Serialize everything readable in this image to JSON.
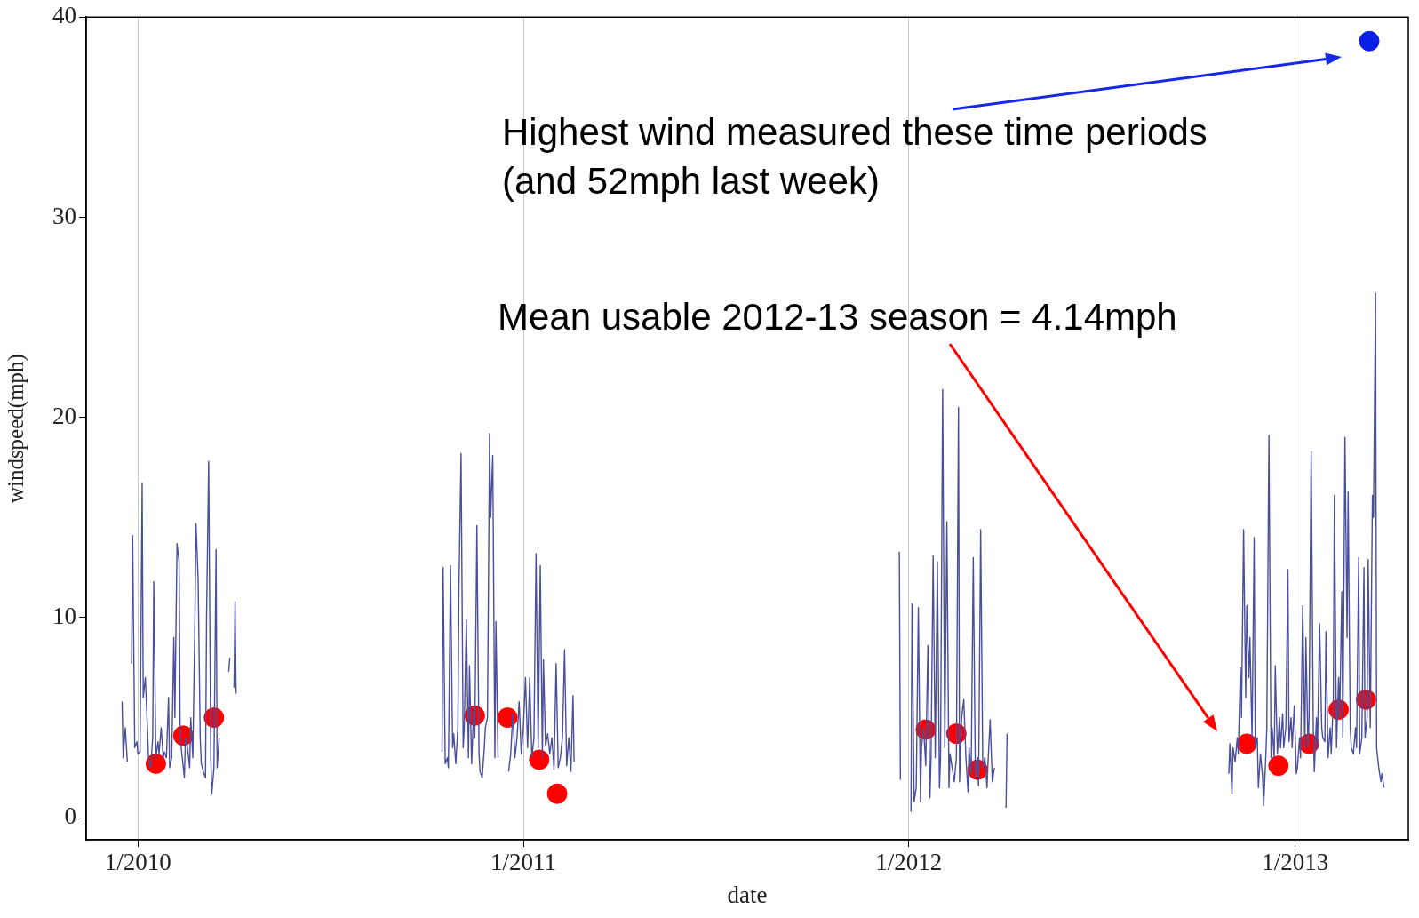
{
  "chart_data": {
    "type": "line",
    "xlabel": "date",
    "ylabel": "windspeed(mph)",
    "xlim": [
      "2009-11-13",
      "2013-04-18"
    ],
    "ylim": [
      -1.1,
      40
    ],
    "xticks": [
      {
        "value": "2010-01-01",
        "label": "1/2010"
      },
      {
        "value": "2011-01-01",
        "label": "1/2011"
      },
      {
        "value": "2012-01-01",
        "label": "1/2012"
      },
      {
        "value": "2013-01-01",
        "label": "1/2013"
      }
    ],
    "yticks": [
      0,
      10,
      20,
      30,
      40
    ],
    "grid": "x",
    "legend": false,
    "annotations": [
      "Highest wind measured these time periods\n(and 52mph last week)",
      "Mean usable 2012-13 season = 4.14mph"
    ],
    "series": [
      {
        "type": "line",
        "color": "#4a4f9c",
        "line_style": "solid",
        "marker": "none",
        "x": [
          "2009-12-17",
          "2009-12-18",
          "2009-12-20",
          "2009-12-22",
          "2009-12-24",
          "2009-12-26",
          "2009-12-27",
          "2009-12-29",
          "2009-12-31",
          "2010-01-01",
          "2010-01-03",
          "2010-01-05",
          "2010-01-06",
          "2010-01-08",
          "2010-01-10",
          "2010-01-11",
          "2010-01-13",
          "2010-01-15",
          "2010-01-16",
          "2010-01-18",
          "2010-01-20",
          "2010-01-21",
          "2010-01-23",
          "2010-01-25",
          "2010-01-26",
          "2010-01-28",
          "2010-01-30",
          "2010-01-31",
          "2010-02-02",
          "2010-02-04",
          "2010-02-05",
          "2010-02-07",
          "2010-02-09",
          "2010-02-10",
          "2010-02-12",
          "2010-02-14",
          "2010-02-15",
          "2010-02-17",
          "2010-02-19",
          "2010-02-20",
          "2010-02-22",
          "2010-02-24",
          "2010-02-25",
          "2010-02-27",
          "2010-03-01",
          "2010-03-02",
          "2010-03-04",
          "2010-03-06",
          "2010-03-07",
          "2010-03-09",
          "2010-03-11",
          "2010-03-12",
          "2010-03-14",
          "2010-03-16",
          "2010-03-17",
          "2010-03-19",
          "2010-03-24",
          "2010-03-28",
          "2010-03-29",
          "2010-03-31",
          "2010-04-02",
          "2010-04-03",
          "2010-04-04",
          "2010-07-01",
          "2010-10-16",
          "2010-10-17",
          "2010-10-19",
          "2010-10-21",
          "2010-10-22",
          "2010-10-24",
          "2010-10-26",
          "2010-10-27",
          "2010-10-29",
          "2010-10-31",
          "2010-11-01",
          "2010-11-03",
          "2010-11-05",
          "2010-11-06",
          "2010-11-08",
          "2010-11-10",
          "2010-11-11",
          "2010-11-13",
          "2010-11-15",
          "2010-11-16",
          "2010-11-18",
          "2010-11-20",
          "2010-11-21",
          "2010-11-23",
          "2010-11-25",
          "2010-11-26",
          "2010-11-28",
          "2010-11-30",
          "2010-12-01",
          "2010-12-03",
          "2010-12-05",
          "2010-12-06",
          "2010-12-08",
          "2010-12-13",
          "2010-12-18",
          "2010-12-20",
          "2010-12-22",
          "2010-12-24",
          "2010-12-26",
          "2010-12-28",
          "2010-12-30",
          "2011-01-01",
          "2011-01-03",
          "2011-01-05",
          "2011-01-07",
          "2011-01-09",
          "2011-01-11",
          "2011-01-13",
          "2011-01-15",
          "2011-01-17",
          "2011-01-19",
          "2011-01-20",
          "2011-01-22",
          "2011-01-24",
          "2011-01-26",
          "2011-01-28",
          "2011-01-30",
          "2011-02-01",
          "2011-02-03",
          "2011-02-05",
          "2011-02-07",
          "2011-02-09",
          "2011-02-11",
          "2011-02-13",
          "2011-02-15",
          "2011-02-17",
          "2011-02-18",
          "2011-07-01",
          "2011-12-23",
          "2011-12-24",
          "2011-12-29",
          "2012-01-03",
          "2012-01-04",
          "2012-01-06",
          "2012-01-08",
          "2012-01-10",
          "2012-01-12",
          "2012-01-13",
          "2012-01-15",
          "2012-01-17",
          "2012-01-19",
          "2012-01-21",
          "2012-01-22",
          "2012-01-24",
          "2012-01-26",
          "2012-01-28",
          "2012-01-30",
          "2012-01-31",
          "2012-02-02",
          "2012-02-04",
          "2012-02-06",
          "2012-02-08",
          "2012-02-09",
          "2012-02-11",
          "2012-02-13",
          "2012-02-15",
          "2012-02-17",
          "2012-02-18",
          "2012-02-20",
          "2012-02-22",
          "2012-02-24",
          "2012-02-26",
          "2012-02-27",
          "2012-02-29",
          "2012-03-02",
          "2012-03-04",
          "2012-03-06",
          "2012-03-07",
          "2012-03-09",
          "2012-03-11",
          "2012-03-13",
          "2012-03-15",
          "2012-03-16",
          "2012-03-18",
          "2012-03-20",
          "2012-03-22",
          "2012-03-27",
          "2012-04-02",
          "2012-04-03",
          "2012-07-01",
          "2012-10-30",
          "2012-10-31",
          "2012-11-02",
          "2012-11-03",
          "2012-11-05",
          "2012-11-07",
          "2012-11-08",
          "2012-11-10",
          "2012-11-11",
          "2012-11-13",
          "2012-11-15",
          "2012-11-16",
          "2012-11-18",
          "2012-11-19",
          "2012-11-21",
          "2012-11-23",
          "2012-11-24",
          "2012-11-26",
          "2012-11-27",
          "2012-11-29",
          "2012-12-01",
          "2012-12-02",
          "2012-12-04",
          "2012-12-05",
          "2012-12-07",
          "2012-12-09",
          "2012-12-10",
          "2012-12-12",
          "2012-12-13",
          "2012-12-15",
          "2012-12-17",
          "2012-12-18",
          "2012-12-20",
          "2012-12-21",
          "2012-12-23",
          "2012-12-25",
          "2012-12-26",
          "2012-12-28",
          "2012-12-29",
          "2012-12-31",
          "2013-01-02",
          "2013-01-03",
          "2013-01-05",
          "2013-01-06",
          "2013-01-08",
          "2013-01-10",
          "2013-01-11",
          "2013-01-13",
          "2013-01-14",
          "2013-01-16",
          "2013-01-18",
          "2013-01-19",
          "2013-01-21",
          "2013-01-22",
          "2013-01-24",
          "2013-01-26",
          "2013-01-27",
          "2013-01-29",
          "2013-01-30",
          "2013-02-01",
          "2013-02-03",
          "2013-02-04",
          "2013-02-06",
          "2013-02-07",
          "2013-02-09",
          "2013-02-11",
          "2013-02-12",
          "2013-02-14",
          "2013-02-15",
          "2013-02-17",
          "2013-02-19",
          "2013-02-20",
          "2013-02-22",
          "2013-02-23",
          "2013-02-25",
          "2013-02-27",
          "2013-02-28",
          "2013-03-02",
          "2013-03-03",
          "2013-03-05",
          "2013-03-07",
          "2013-03-08",
          "2013-03-10",
          "2013-03-11",
          "2013-03-13",
          "2013-03-15",
          "2013-03-16",
          "2013-03-18",
          "2013-03-19",
          "2013-03-21",
          "2013-03-23",
          "2013-03-24",
          "2013-03-26"
        ],
        "values": [
          5.8,
          3.0,
          4.5,
          2.8,
          null,
          7.7,
          14.1,
          3.5,
          3.8,
          3.2,
          3.3,
          16.7,
          6,
          7,
          4.5,
          3,
          2.5,
          4,
          11.8,
          3,
          3.8,
          3.2,
          4.5,
          3,
          3.3,
          3,
          6,
          2.5,
          3,
          9,
          5,
          13.7,
          12.8,
          4,
          3,
          2,
          4,
          3.5,
          2.5,
          5,
          3,
          10,
          14.7,
          12,
          4,
          2.7,
          2.3,
          2,
          10,
          17.8,
          3,
          1.2,
          2.5,
          13.4,
          2.5,
          4,
          null,
          7.3,
          8,
          null,
          6.5,
          10.8,
          6.2,
          null,
          3.3,
          12.5,
          2.7,
          3.0,
          2.5,
          12.6,
          3.5,
          4.2,
          2.7,
          4.5,
          11.5,
          18.2,
          3.5,
          4.5,
          9.9,
          3,
          7.6,
          2.7,
          5.5,
          4,
          14.6,
          3.2,
          2.3,
          2,
          3.5,
          4.5,
          5,
          19.2,
          15,
          18.1,
          3,
          9.8,
          3,
          null,
          2.3,
          3.2,
          5.2,
          3,
          4,
          5.8,
          3.2,
          4.5,
          7,
          3.5,
          7,
          3,
          4,
          13.2,
          3.5,
          12.6,
          3,
          7.9,
          3.6,
          4.2,
          3.2,
          4,
          2.4,
          7.7,
          2.5,
          3,
          4,
          8.4,
          2.6,
          4,
          2.3,
          6.1,
          2.8,
          null,
          13.3,
          1.9,
          null,
          0.3,
          10.7,
          0.8,
          1.5,
          10.5,
          0.8,
          3.5,
          4.5,
          2.6,
          8.6,
          1.0,
          3.0,
          13.1,
          3,
          12.8,
          1.5,
          3,
          21.4,
          3.5,
          14.8,
          1.5,
          3.2,
          2.5,
          1.8,
          3,
          20.5,
          1.8,
          5,
          5.9,
          3,
          1.3,
          3.5,
          2.2,
          13.0,
          2.0,
          3,
          1.6,
          14.4,
          2.5,
          3,
          1.5,
          2.8,
          4.9,
          1.8,
          2.5,
          null,
          0.5,
          4.2,
          null,
          2.2,
          3.7,
          1.2,
          3.5,
          2.8,
          4.0,
          3.2,
          7.5,
          5,
          14.4,
          6,
          10.6,
          7,
          9,
          4,
          14.0,
          3.5,
          4,
          1.5,
          3.2,
          2.0,
          0.6,
          3,
          4.5,
          19.1,
          3,
          4.5,
          3,
          7.6,
          3.2,
          5,
          3.5,
          5.2,
          3.5,
          4.5,
          12.4,
          3.8,
          5,
          3.5,
          5.6,
          2.2,
          2.5,
          4,
          3,
          10.6,
          3.5,
          9,
          3.5,
          5,
          18.3,
          4.5,
          2.3,
          5,
          3.5,
          9.7,
          4.5,
          4,
          3.8,
          9.3,
          3,
          4.5,
          3.2,
          6,
          16.1,
          3.5,
          7,
          5,
          11.3,
          4,
          19.0,
          9,
          16.3,
          4.5,
          3.5,
          3.2,
          4.5,
          3.5,
          13.0,
          3.2,
          4,
          12.5,
          4,
          5,
          12.9,
          4.5,
          16.1,
          15,
          26.2,
          3.5,
          2.5,
          1.8,
          2.2,
          1.5
        ]
      },
      {
        "type": "scatter",
        "color": "#ff0000",
        "marker": "circle",
        "x": [
          "2010-01-18",
          "2010-02-13",
          "2010-03-14",
          "2010-11-16",
          "2010-12-17",
          "2011-01-16",
          "2011-02-02",
          "2012-01-17",
          "2012-02-15",
          "2012-03-06",
          "2012-11-16",
          "2012-12-16",
          "2013-01-14",
          "2013-02-11",
          "2013-03-09"
        ],
        "values": [
          2.7,
          4.1,
          5.0,
          5.1,
          5.0,
          2.9,
          1.2,
          4.4,
          4.2,
          2.4,
          3.7,
          2.6,
          3.7,
          5.4,
          5.9
        ]
      },
      {
        "type": "scatter",
        "color": "#0a1ee6",
        "marker": "circle",
        "x": [
          "2013-03-12"
        ],
        "values": [
          38.8
        ]
      }
    ]
  }
}
